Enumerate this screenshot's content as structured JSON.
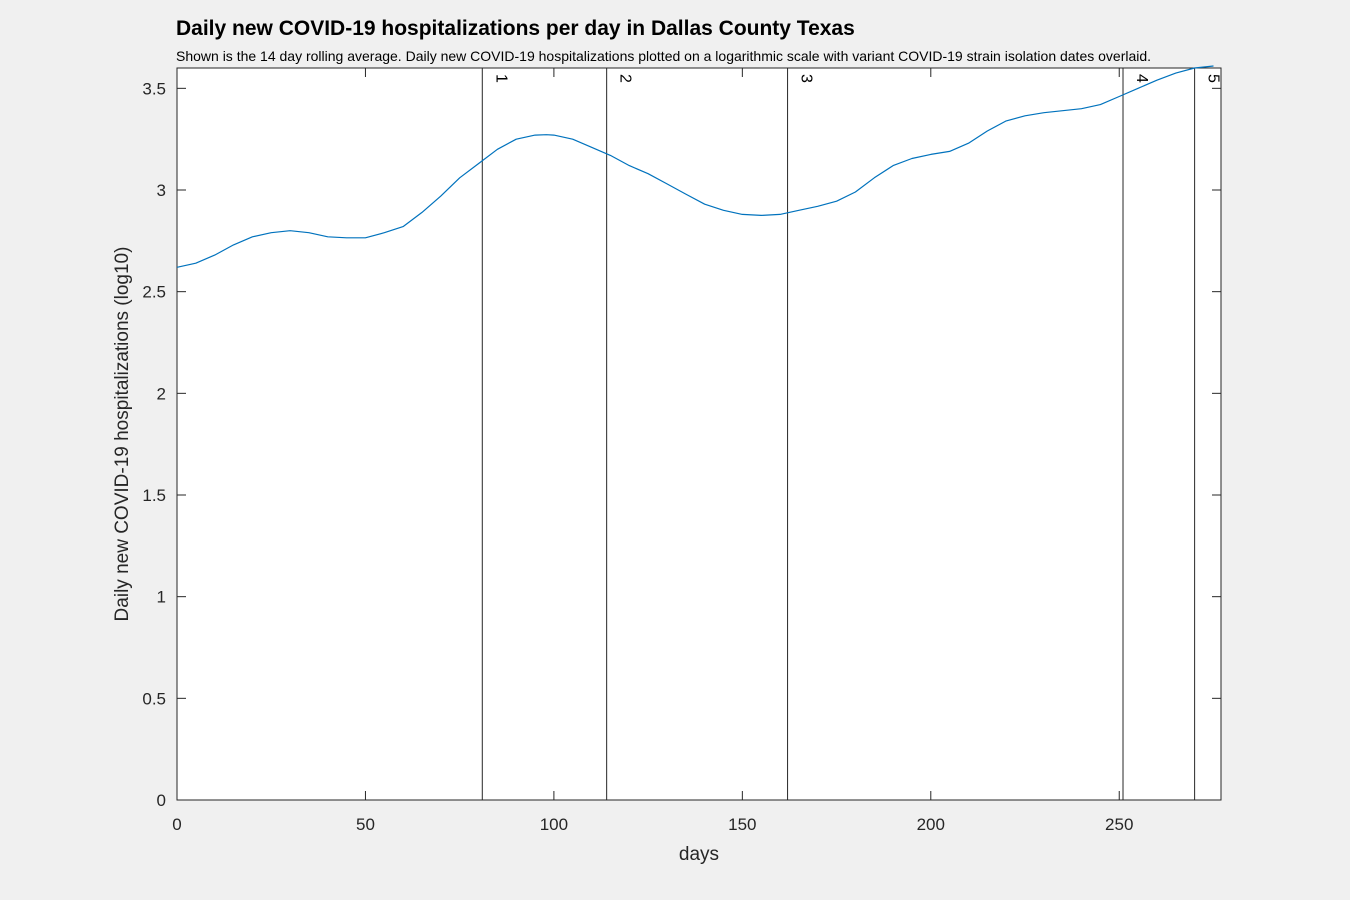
{
  "chart_data": {
    "type": "line",
    "title": "Daily new COVID-19 hospitalizations per day in Dallas County Texas",
    "subtitle": "Shown is the 14 day rolling average. Daily new COVID-19 hospitalizations plotted on a logarithmic scale with variant COVID-19 strain isolation dates overlaid.",
    "xlabel": "days",
    "ylabel": "Daily new COVID-19 hospitalizations (log10)",
    "xlim": [
      0,
      277
    ],
    "ylim": [
      0,
      3.6
    ],
    "x_ticks": [
      0,
      50,
      100,
      150,
      200,
      250
    ],
    "y_ticks": [
      0,
      0.5,
      1,
      1.5,
      2,
      2.5,
      3,
      3.5
    ],
    "x_tick_labels": [
      "0",
      "50",
      "100",
      "150",
      "200",
      "250"
    ],
    "y_tick_labels": [
      "0",
      "0.5",
      "1",
      "1.5",
      "2",
      "2.5",
      "3",
      "3.5"
    ],
    "grid": false,
    "line_color": "#0072bd",
    "variant_lines": [
      {
        "label": "1",
        "x": 81
      },
      {
        "label": "2",
        "x": 114
      },
      {
        "label": "3",
        "x": 162
      },
      {
        "label": "4",
        "x": 251
      },
      {
        "label": "5",
        "x": 270
      }
    ],
    "series": [
      {
        "x": [
          0,
          5,
          10,
          15,
          20,
          25,
          30,
          35,
          40,
          45,
          50,
          55,
          60,
          65,
          70,
          75,
          80,
          85,
          90,
          95,
          98,
          100,
          105,
          110,
          115,
          120,
          125,
          130,
          135,
          140,
          145,
          150,
          155,
          160,
          165,
          170,
          175,
          180,
          185,
          190,
          195,
          200,
          205,
          210,
          215,
          220,
          225,
          230,
          235,
          240,
          245,
          250,
          255,
          260,
          265,
          270,
          275
        ],
        "y": [
          2.62,
          2.64,
          2.68,
          2.73,
          2.77,
          2.79,
          2.8,
          2.79,
          2.77,
          2.765,
          2.765,
          2.79,
          2.82,
          2.89,
          2.97,
          3.06,
          3.13,
          3.2,
          3.25,
          3.27,
          3.272,
          3.27,
          3.25,
          3.21,
          3.17,
          3.12,
          3.08,
          3.03,
          2.98,
          2.93,
          2.9,
          2.88,
          2.875,
          2.88,
          2.9,
          2.92,
          2.945,
          2.99,
          3.06,
          3.12,
          3.155,
          3.175,
          3.19,
          3.23,
          3.29,
          3.34,
          3.365,
          3.38,
          3.39,
          3.4,
          3.42,
          3.46,
          3.5,
          3.54,
          3.575,
          3.6,
          3.61
        ]
      }
    ]
  }
}
